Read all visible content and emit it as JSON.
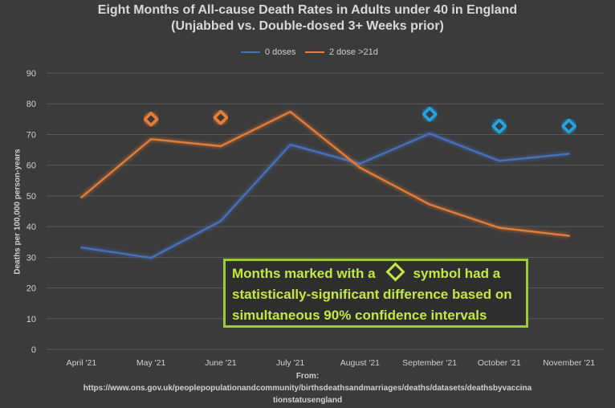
{
  "title_line1": "Eight Months of All-cause Death Rates in Adults under 40 in England",
  "title_line2": "(Unjabbed vs. Double-dosed 3+ Weeks prior)",
  "source_line1": "From:",
  "source_line2": "https://www.ons.gov.uk/peoplepopulationandcommunity/birthsdeathsandmarriages/deaths/datasets/deathsbyvaccina",
  "source_line3": "tionstatusengland",
  "callout": {
    "text_before": "Months marked with a",
    "text_after": "symbol had a",
    "line2": "statistically-significant difference based on",
    "line3": "simultaneous 90% confidence intervals"
  },
  "chart_data": {
    "type": "line",
    "title": "Eight Months of All-cause Death Rates in Adults under 40 in England (Unjabbed vs. Double-dosed 3+ Weeks prior)",
    "ylabel": "Deaths per 100,000 person-years",
    "xlabel": "",
    "ylim": [
      0,
      90
    ],
    "yticks": [
      0,
      10,
      20,
      30,
      40,
      50,
      60,
      70,
      80,
      90
    ],
    "grid": true,
    "legend": "top-center",
    "categories": [
      "April '21",
      "May '21",
      "June '21",
      "July '21",
      "August '21",
      "September '21",
      "October '21",
      "November '21"
    ],
    "series": [
      {
        "name": "0 doses",
        "color": "#4472c4",
        "values": [
          33.2,
          29.8,
          41.8,
          66.7,
          60.5,
          70.3,
          61.4,
          63.7
        ]
      },
      {
        "name": "2 dose >21d",
        "color": "#ed7d31",
        "values": [
          49.5,
          68.5,
          66.2,
          77.4,
          59.2,
          47.2,
          39.6,
          37.0
        ]
      }
    ],
    "significance_markers": [
      {
        "category": "May '21",
        "value": 75.0,
        "color": "#ed7d31"
      },
      {
        "category": "June '21",
        "value": 75.5,
        "color": "#ed7d31"
      },
      {
        "category": "September '21",
        "value": 76.6,
        "color": "#1ea7e8"
      },
      {
        "category": "October '21",
        "value": 72.7,
        "color": "#1ea7e8"
      },
      {
        "category": "November '21",
        "value": 72.7,
        "color": "#1ea7e8"
      }
    ]
  }
}
